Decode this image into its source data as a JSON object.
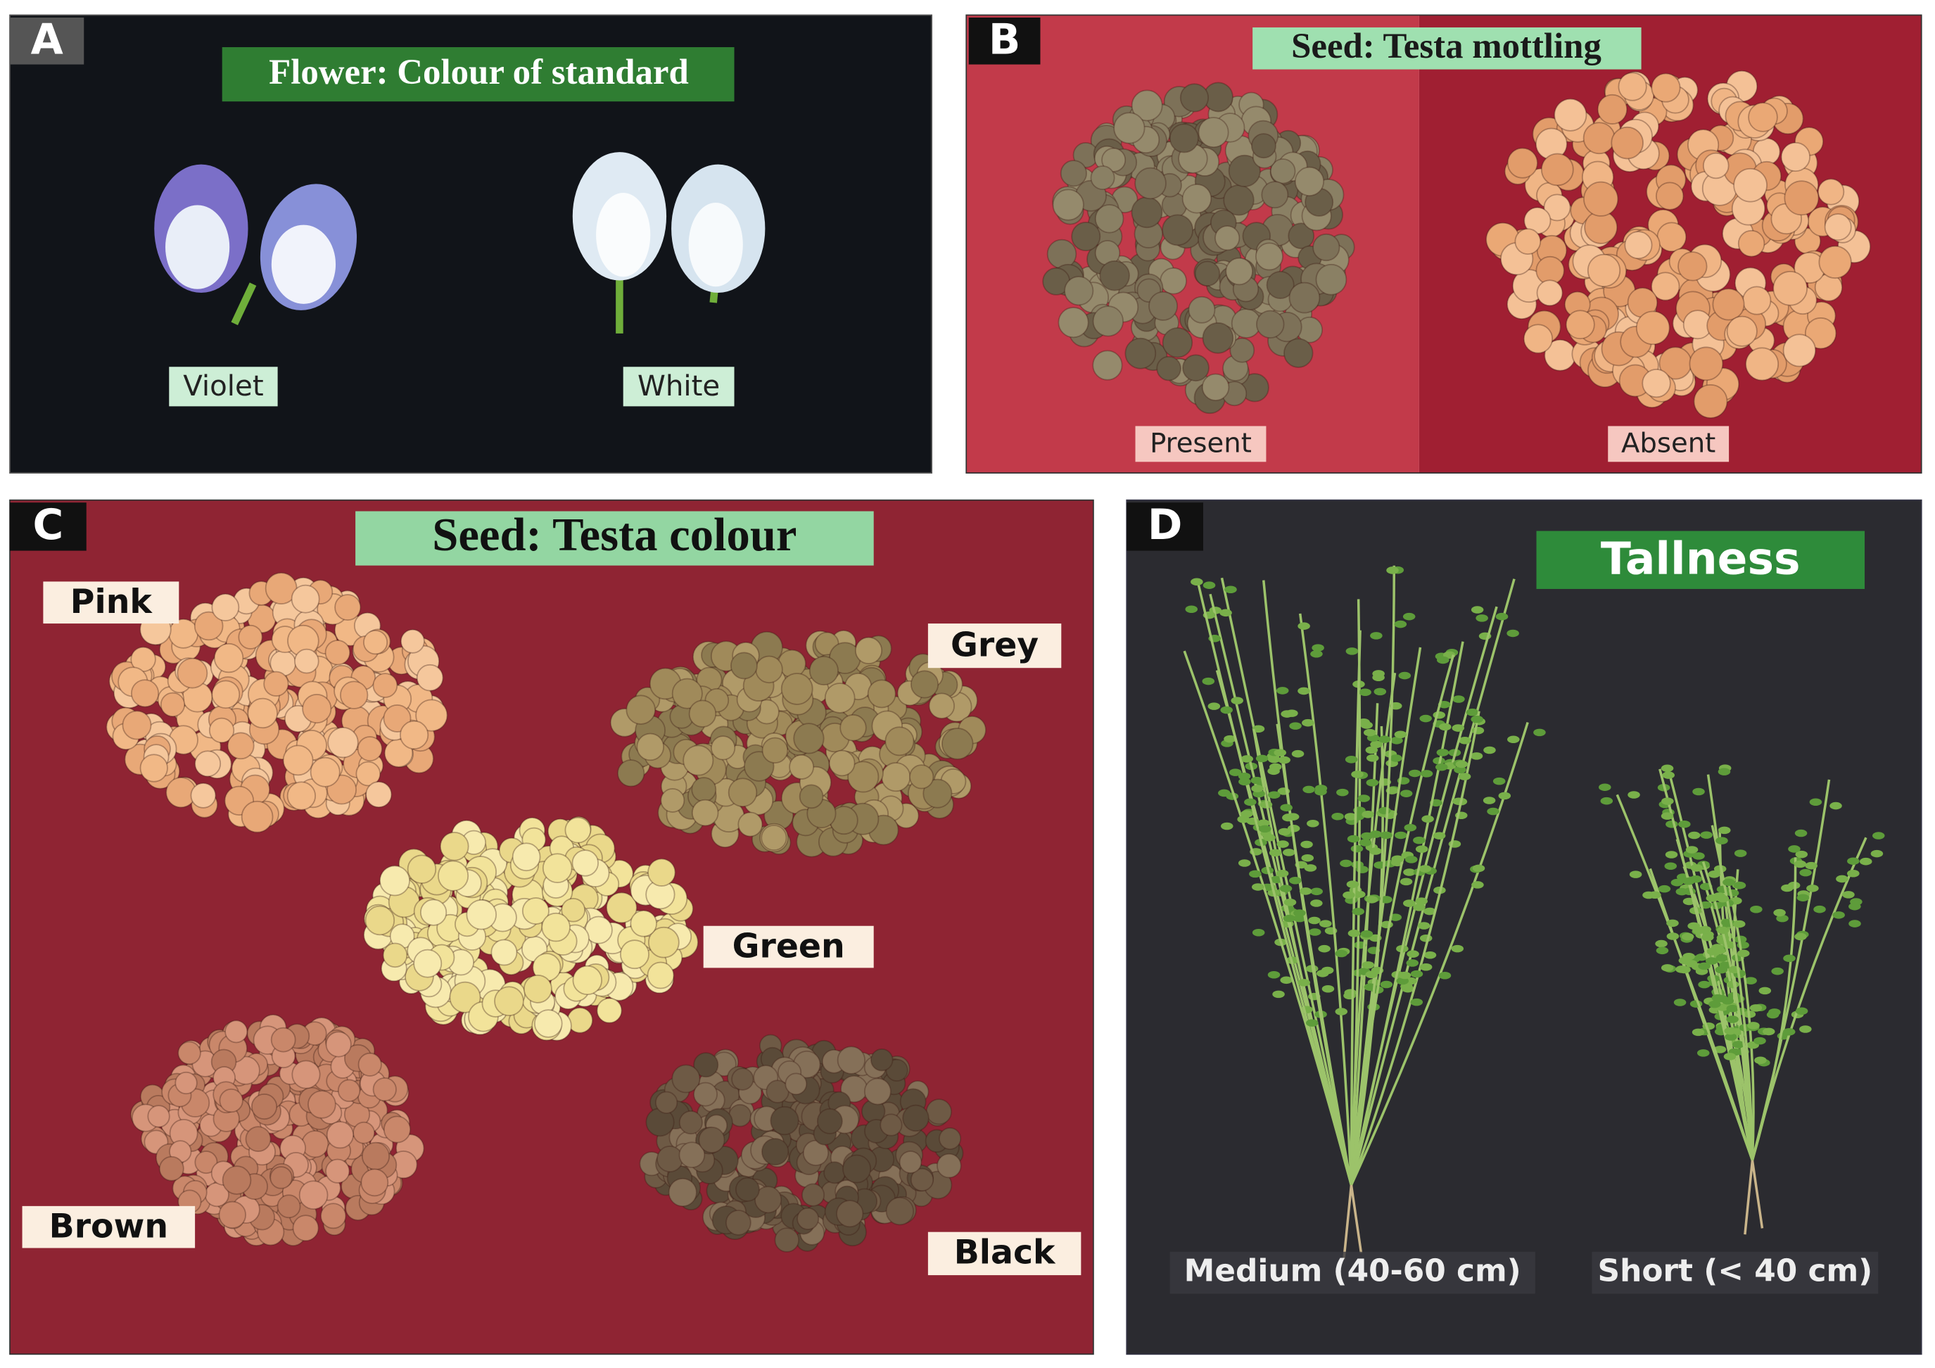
{
  "panels": [
    {
      "letter": "A",
      "title": "Flower: Colour of standard",
      "labels": [
        "Violet",
        "White"
      ]
    },
    {
      "letter": "B",
      "title": "Seed: Testa mottling",
      "labels": [
        "Present",
        "Absent"
      ]
    },
    {
      "letter": "C",
      "title": "Seed: Testa colour",
      "labels": [
        "Pink",
        "Grey",
        "Green",
        "Brown",
        "Black"
      ]
    },
    {
      "letter": "D",
      "title": "Tallness",
      "labels": [
        "Medium (40-60 cm)",
        "Short (< 40 cm)"
      ]
    }
  ]
}
